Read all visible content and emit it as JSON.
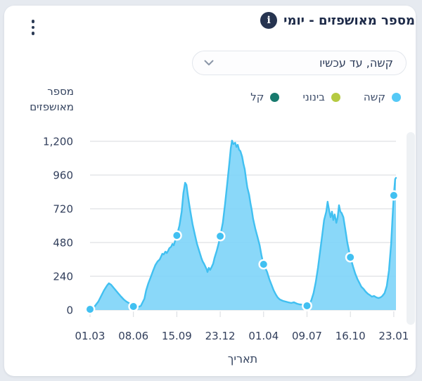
{
  "header": {
    "title": "מספר מאושפזים - יומי",
    "info_glyph": "i"
  },
  "filter": {
    "selected": "קשה, עד עכשיו"
  },
  "legend": [
    {
      "label": "קשה",
      "color": "#55c9f6"
    },
    {
      "label": "בינוני",
      "color": "#b5ca41"
    },
    {
      "label": "קל",
      "color": "#187a6e"
    }
  ],
  "chart_data": {
    "type": "area",
    "series_name": "קשה",
    "xlabel": "תאריך",
    "ylabel": "מספר מאושפזים",
    "ylabel_lines": [
      "מספר",
      "מאושפזים"
    ],
    "x_ticks": [
      "01.03",
      "08.06",
      "15.09",
      "23.12",
      "01.04",
      "09.07",
      "16.10",
      "23.01"
    ],
    "x_tick_interval_days": 99,
    "x_range_days": [
      0,
      698
    ],
    "y_ticks": [
      "0",
      "240",
      "480",
      "720",
      "960",
      "1,200"
    ],
    "ylim": [
      0,
      1200
    ],
    "grid": true,
    "legend_position": "top-right",
    "colors": {
      "area_fill": "#80d5f8",
      "line": "#41c0f1",
      "marker": "#41c0f1",
      "marker_ring": "#ffffff",
      "gridline": "#d7dade"
    },
    "markers": [
      [
        0,
        5
      ],
      [
        99,
        25
      ],
      [
        198,
        530
      ],
      [
        297,
        525
      ],
      [
        396,
        325
      ],
      [
        495,
        30
      ],
      [
        594,
        375
      ],
      [
        693,
        815
      ]
    ],
    "points": [
      [
        0,
        5
      ],
      [
        8,
        15
      ],
      [
        19,
        60
      ],
      [
        32,
        140
      ],
      [
        39,
        175
      ],
      [
        43,
        190
      ],
      [
        48,
        180
      ],
      [
        56,
        150
      ],
      [
        64,
        120
      ],
      [
        71,
        95
      ],
      [
        77,
        75
      ],
      [
        83,
        60
      ],
      [
        91,
        45
      ],
      [
        99,
        25
      ],
      [
        109,
        20
      ],
      [
        116,
        30
      ],
      [
        124,
        80
      ],
      [
        128,
        140
      ],
      [
        133,
        190
      ],
      [
        138,
        230
      ],
      [
        144,
        280
      ],
      [
        149,
        320
      ],
      [
        154,
        345
      ],
      [
        159,
        360
      ],
      [
        162,
        380
      ],
      [
        165,
        400
      ],
      [
        168,
        395
      ],
      [
        172,
        415
      ],
      [
        175,
        405
      ],
      [
        178,
        420
      ],
      [
        181,
        440
      ],
      [
        185,
        450
      ],
      [
        188,
        470
      ],
      [
        191,
        460
      ],
      [
        194,
        490
      ],
      [
        198,
        530
      ],
      [
        204,
        600
      ],
      [
        209,
        700
      ],
      [
        213,
        830
      ],
      [
        217,
        905
      ],
      [
        220,
        890
      ],
      [
        223,
        820
      ],
      [
        226,
        760
      ],
      [
        229,
        700
      ],
      [
        234,
        610
      ],
      [
        239,
        540
      ],
      [
        244,
        470
      ],
      [
        249,
        420
      ],
      [
        254,
        370
      ],
      [
        257,
        345
      ],
      [
        260,
        330
      ],
      [
        263,
        310
      ],
      [
        266,
        290
      ],
      [
        268,
        270
      ],
      [
        271,
        300
      ],
      [
        274,
        285
      ],
      [
        278,
        310
      ],
      [
        281,
        330
      ],
      [
        284,
        370
      ],
      [
        289,
        420
      ],
      [
        294,
        480
      ],
      [
        297,
        525
      ],
      [
        303,
        620
      ],
      [
        308,
        750
      ],
      [
        313,
        900
      ],
      [
        318,
        1050
      ],
      [
        321,
        1150
      ],
      [
        324,
        1205
      ],
      [
        327,
        1180
      ],
      [
        331,
        1190
      ],
      [
        334,
        1160
      ],
      [
        337,
        1175
      ],
      [
        340,
        1140
      ],
      [
        343,
        1130
      ],
      [
        347,
        1090
      ],
      [
        350,
        1040
      ],
      [
        353,
        1000
      ],
      [
        356,
        930
      ],
      [
        359,
        870
      ],
      [
        363,
        820
      ],
      [
        366,
        760
      ],
      [
        369,
        710
      ],
      [
        372,
        650
      ],
      [
        377,
        580
      ],
      [
        382,
        520
      ],
      [
        387,
        460
      ],
      [
        391,
        390
      ],
      [
        394,
        350
      ],
      [
        396,
        325
      ],
      [
        404,
        270
      ],
      [
        409,
        220
      ],
      [
        414,
        180
      ],
      [
        419,
        140
      ],
      [
        424,
        110
      ],
      [
        428,
        90
      ],
      [
        433,
        75
      ],
      [
        440,
        65
      ],
      [
        446,
        60
      ],
      [
        452,
        55
      ],
      [
        459,
        50
      ],
      [
        465,
        55
      ],
      [
        472,
        45
      ],
      [
        478,
        40
      ],
      [
        485,
        38
      ],
      [
        491,
        35
      ],
      [
        495,
        30
      ],
      [
        501,
        45
      ],
      [
        505,
        70
      ],
      [
        510,
        120
      ],
      [
        515,
        200
      ],
      [
        520,
        300
      ],
      [
        525,
        420
      ],
      [
        530,
        540
      ],
      [
        534,
        640
      ],
      [
        539,
        700
      ],
      [
        542,
        770
      ],
      [
        546,
        700
      ],
      [
        549,
        660
      ],
      [
        552,
        700
      ],
      [
        555,
        640
      ],
      [
        558,
        680
      ],
      [
        562,
        620
      ],
      [
        565,
        660
      ],
      [
        568,
        745
      ],
      [
        571,
        700
      ],
      [
        574,
        690
      ],
      [
        578,
        660
      ],
      [
        581,
        600
      ],
      [
        584,
        540
      ],
      [
        587,
        480
      ],
      [
        594,
        375
      ],
      [
        600,
        310
      ],
      [
        605,
        260
      ],
      [
        610,
        220
      ],
      [
        615,
        190
      ],
      [
        619,
        165
      ],
      [
        624,
        150
      ],
      [
        629,
        130
      ],
      [
        634,
        115
      ],
      [
        639,
        105
      ],
      [
        643,
        95
      ],
      [
        648,
        100
      ],
      [
        653,
        90
      ],
      [
        658,
        85
      ],
      [
        663,
        90
      ],
      [
        667,
        100
      ],
      [
        672,
        120
      ],
      [
        677,
        170
      ],
      [
        682,
        280
      ],
      [
        687,
        470
      ],
      [
        690,
        650
      ],
      [
        693,
        815
      ],
      [
        696,
        930
      ],
      [
        698,
        940
      ]
    ]
  }
}
